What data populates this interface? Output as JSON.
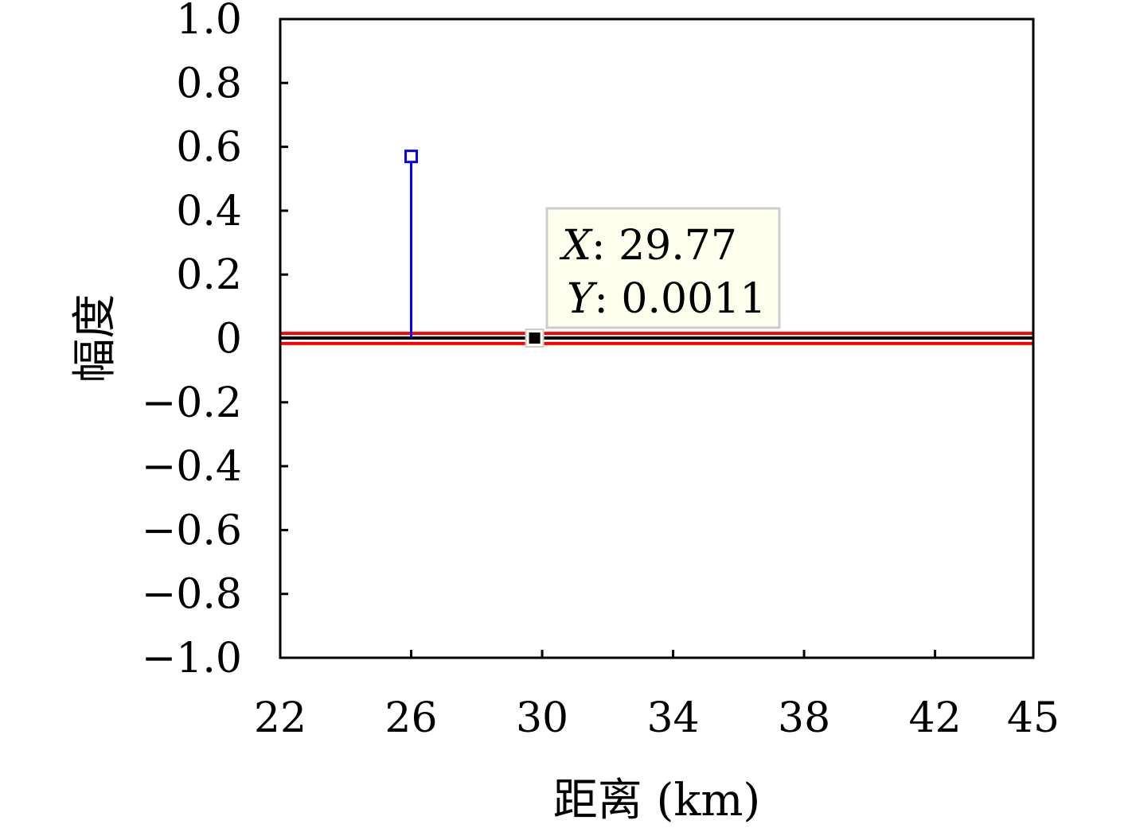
{
  "chart_data": {
    "type": "line",
    "xlabel": "距离 (km)",
    "ylabel": "幅度",
    "xlim": [
      22,
      45
    ],
    "ylim": [
      -1.0,
      1.0
    ],
    "xticks": [
      22,
      26,
      30,
      34,
      38,
      42,
      45
    ],
    "xtick_labels": [
      "22",
      "26",
      "30",
      "34",
      "38",
      "42",
      "45"
    ],
    "yticks": [
      -1.0,
      -0.8,
      -0.6,
      -0.4,
      -0.2,
      0,
      0.2,
      0.4,
      0.6,
      0.8,
      1.0
    ],
    "ytick_labels": [
      "−1.0",
      "−0.8",
      "−0.6",
      "−0.4",
      "−0.2",
      "0",
      "0.2",
      "0.4",
      "0.6",
      "0.8",
      "1.0"
    ],
    "series": [
      {
        "type": "stem",
        "color": "#0000ff",
        "marker": "square-open",
        "points": [
          {
            "x": 26,
            "y": 0.57
          }
        ]
      },
      {
        "type": "line",
        "color": "#ff0000",
        "y": 0.016
      },
      {
        "type": "line",
        "color": "#ff0000",
        "y": -0.016
      },
      {
        "type": "line",
        "color": "#000000",
        "y": 0.0011
      }
    ],
    "datatip": {
      "x": 29.77,
      "y": 0.0011,
      "x_key": "X",
      "y_key": "Y",
      "x_text": ": 29.77",
      "y_text": ": 0.0011",
      "background": "#ffffee",
      "border": "#cccccc"
    },
    "grid": false
  }
}
